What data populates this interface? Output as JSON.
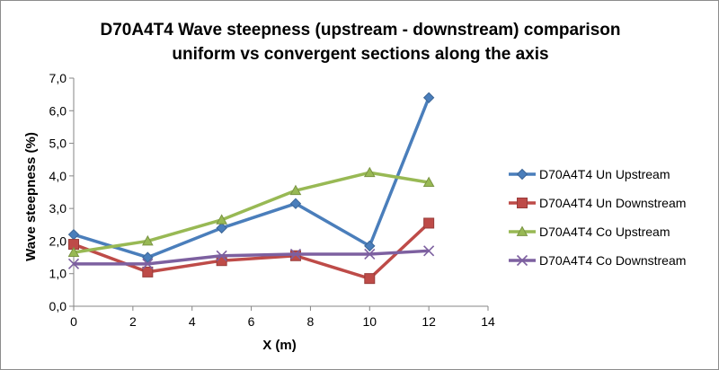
{
  "chart_data": {
    "type": "line",
    "title_lines": [
      "D70A4T4 Wave steepness (upstream - downstream) comparison",
      "uniform vs convergent sections along the axis"
    ],
    "xlabel": "X (m)",
    "ylabel": "Wave steepness (%)",
    "xlim": [
      0,
      14
    ],
    "ylim": [
      0,
      7
    ],
    "x_ticks": [
      0,
      2,
      4,
      6,
      8,
      10,
      12,
      14
    ],
    "y_ticks": [
      "0,0",
      "1,0",
      "2,0",
      "3,0",
      "4,0",
      "5,0",
      "6,0",
      "7,0"
    ],
    "grid": false,
    "legend_position": "right",
    "series": [
      {
        "name": "D70A4T4 Un Upstream",
        "color": "#4a7ebb",
        "marker": "diamond",
        "x": [
          0,
          2.5,
          5,
          7.5,
          10,
          12
        ],
        "y": [
          2.2,
          1.5,
          2.4,
          3.15,
          1.85,
          6.4
        ]
      },
      {
        "name": "D70A4T4 Un Downstream",
        "color": "#be4b48",
        "marker": "square",
        "x": [
          0,
          2.5,
          5,
          7.5,
          10,
          12
        ],
        "y": [
          1.9,
          1.05,
          1.4,
          1.55,
          0.85,
          2.55
        ]
      },
      {
        "name": "D70A4T4 Co Upstream",
        "color": "#98b954",
        "marker": "triangle",
        "x": [
          0,
          2.5,
          5,
          7.5,
          10,
          12
        ],
        "y": [
          1.65,
          2.0,
          2.65,
          3.55,
          4.1,
          3.8
        ]
      },
      {
        "name": "D70A4T4 Co Downstream",
        "color": "#7d60a0",
        "marker": "x",
        "x": [
          0,
          2.5,
          5,
          7.5,
          10,
          12
        ],
        "y": [
          1.3,
          1.3,
          1.55,
          1.6,
          1.6,
          1.7
        ]
      }
    ]
  }
}
